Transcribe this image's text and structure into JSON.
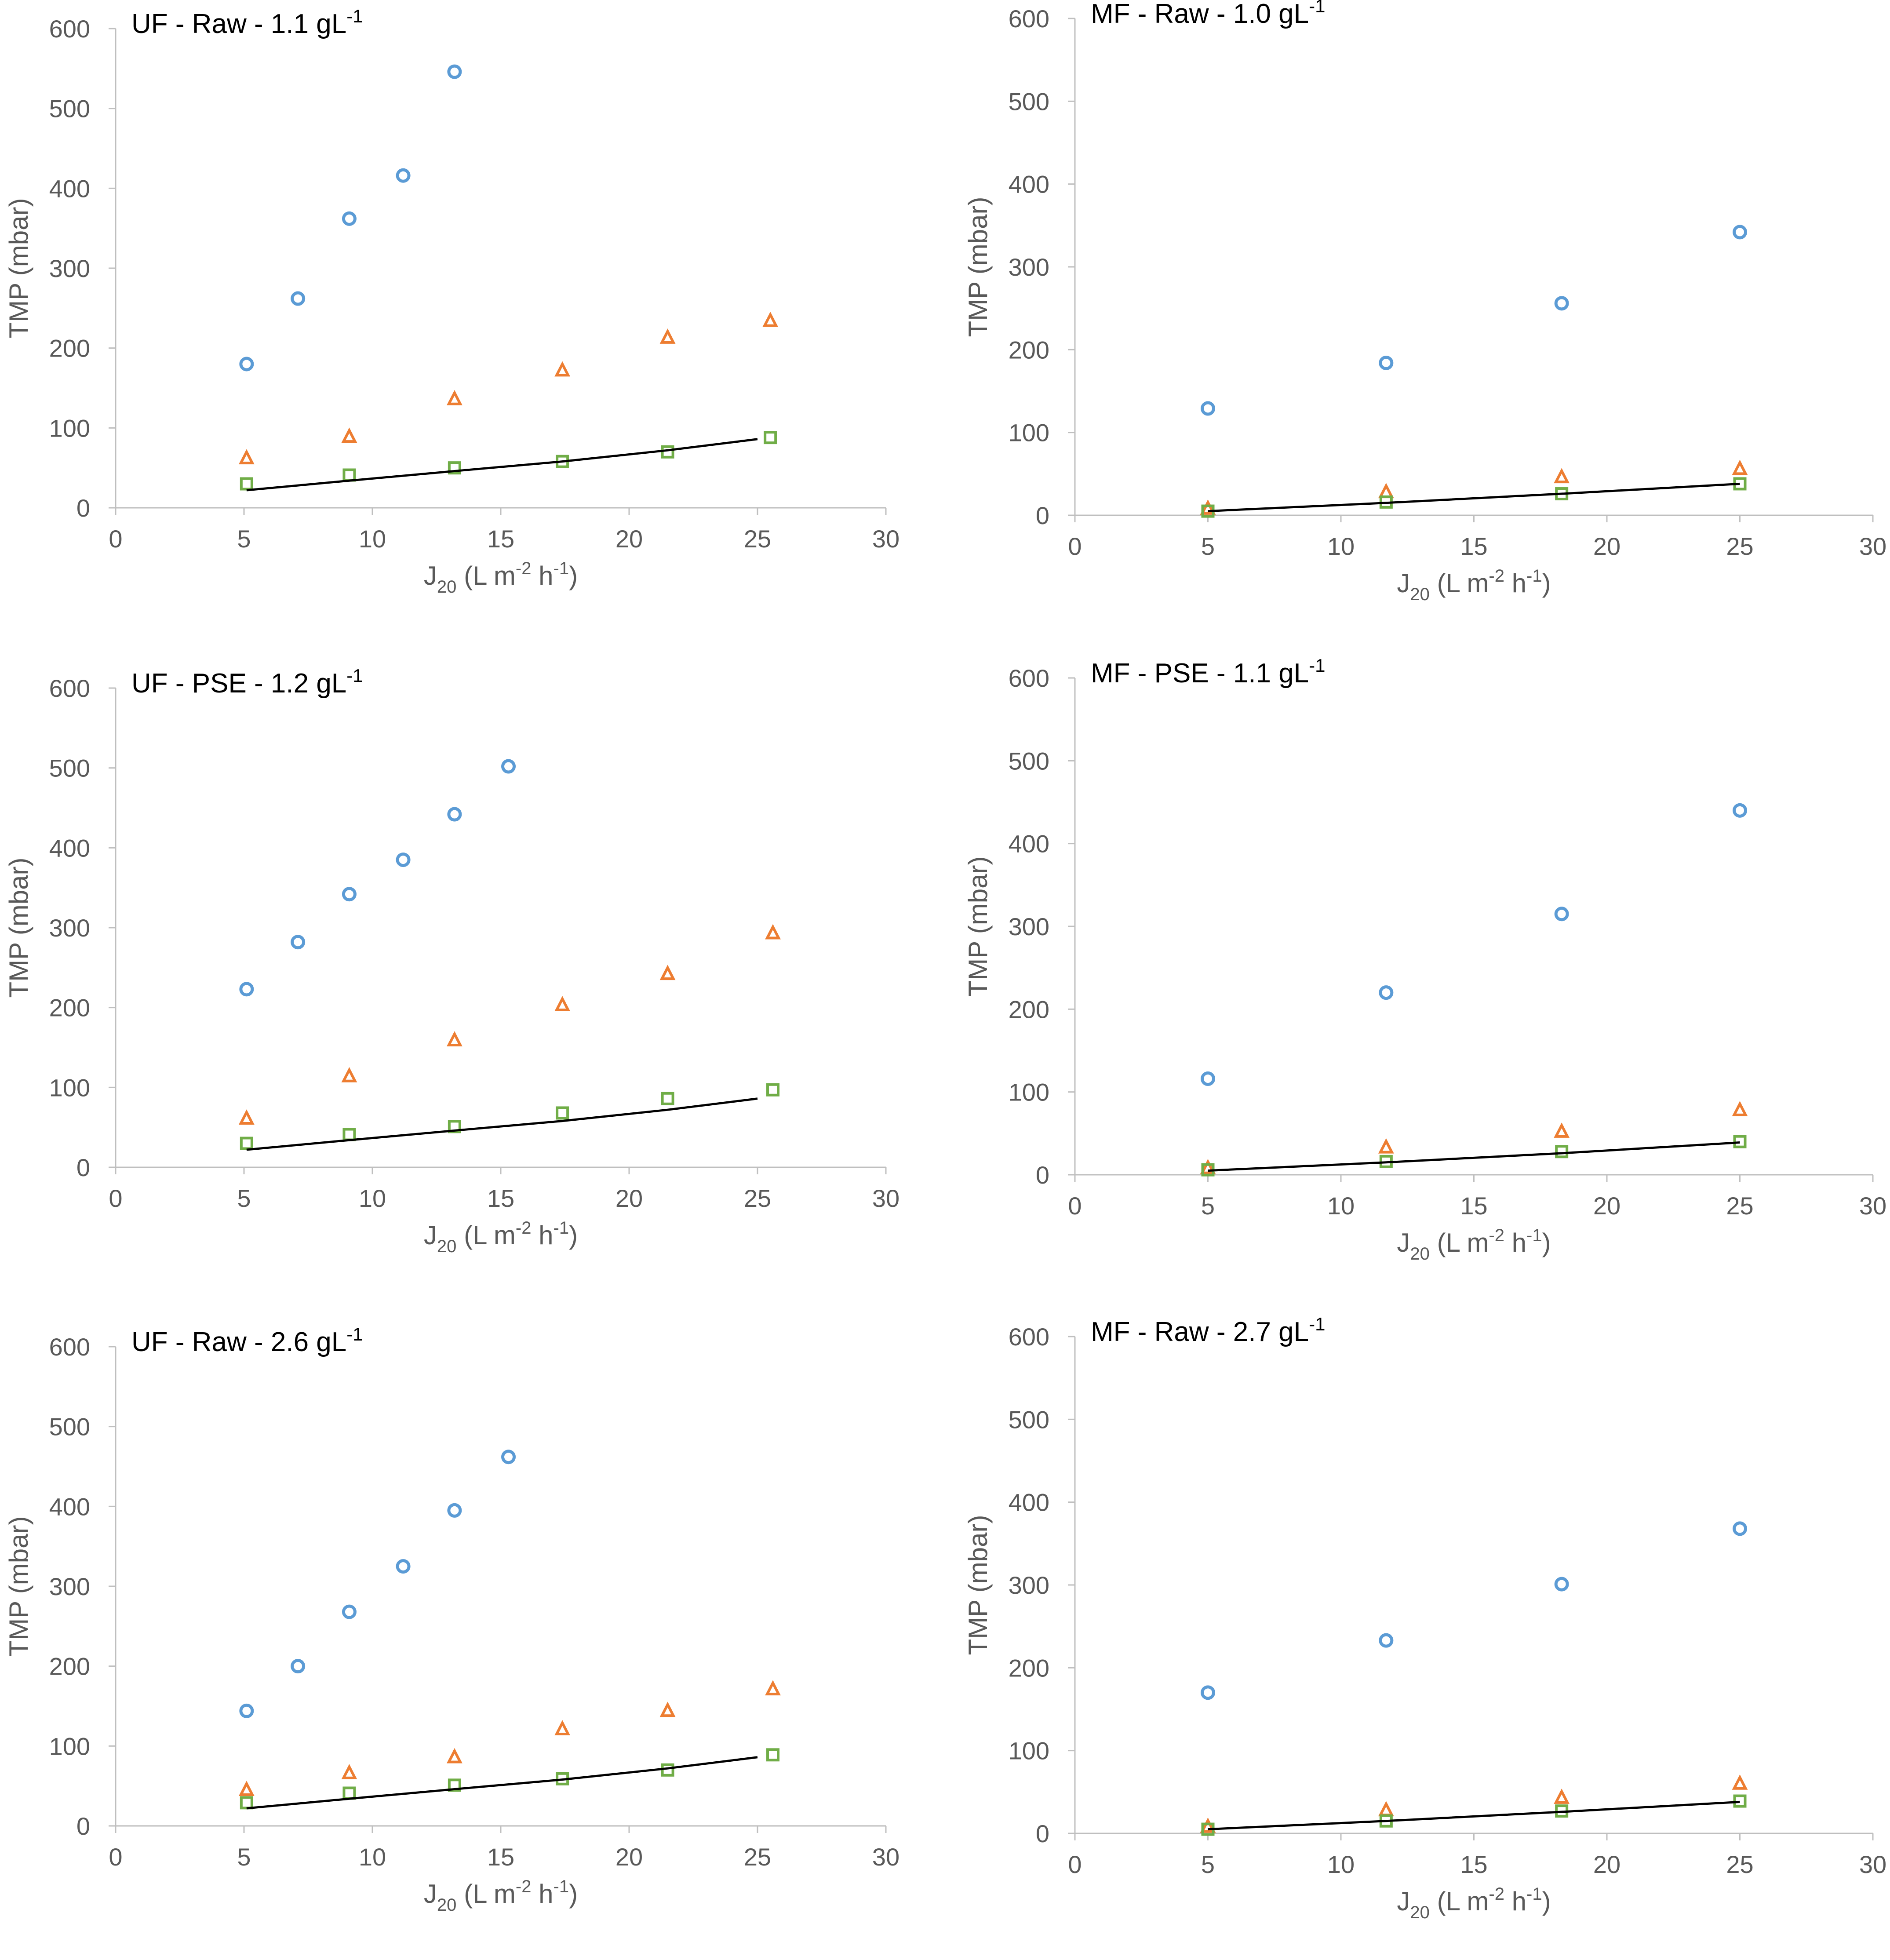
{
  "colors": {
    "circle": "#5b9bd5",
    "triangle": "#ed7d31",
    "square": "#70ad47",
    "line": "#000000"
  },
  "chart_data": [
    {
      "type": "scatter",
      "title": "UF - Raw - 1.1 gL",
      "title_superscript": "-1",
      "xlabel": "J20 (L m-2 h-1)",
      "xlabel_parts": [
        "J",
        "20",
        " (L m",
        "-2",
        " h",
        "-1",
        ")"
      ],
      "ylabel": "TMP (mbar)",
      "xlim": [
        0,
        30
      ],
      "ylim": [
        0,
        600
      ],
      "xticks": [
        0,
        5,
        10,
        15,
        20,
        25,
        30
      ],
      "yticks": [
        0,
        100,
        200,
        300,
        400,
        500,
        600
      ],
      "series": [
        {
          "name": "circle",
          "marker": "circle",
          "x": [
            5.1,
            7.1,
            9.1,
            11.2,
            13.2
          ],
          "y": [
            180,
            262,
            362,
            416,
            546
          ]
        },
        {
          "name": "triangle",
          "marker": "triangle",
          "x": [
            5.1,
            9.1,
            13.2,
            17.4,
            21.5,
            25.5
          ],
          "y": [
            62,
            89,
            136,
            172,
            213,
            234
          ]
        },
        {
          "name": "square",
          "marker": "square",
          "x": [
            5.1,
            9.1,
            13.2,
            17.4,
            21.5,
            25.5
          ],
          "y": [
            30,
            41,
            50,
            58,
            70,
            88
          ]
        },
        {
          "name": "line",
          "marker": "line",
          "x": [
            5.1,
            9.1,
            13.2,
            17.4,
            21.5,
            25.0
          ],
          "y": [
            22,
            34,
            46,
            58,
            72,
            86
          ]
        }
      ]
    },
    {
      "type": "scatter",
      "title": "MF - Raw - 1.0 gL",
      "title_superscript": "-1",
      "xlabel": "J20 (L m-2 h-1)",
      "xlabel_parts": [
        "J",
        "20",
        " (L m",
        "-2",
        " h",
        "-1",
        ")"
      ],
      "ylabel": "TMP (mbar)",
      "xlim": [
        0,
        30
      ],
      "ylim": [
        0,
        600
      ],
      "xticks": [
        0,
        5,
        10,
        15,
        20,
        25,
        30
      ],
      "yticks": [
        0,
        100,
        200,
        300,
        400,
        500,
        600
      ],
      "series": [
        {
          "name": "circle",
          "marker": "circle",
          "x": [
            5.0,
            11.7,
            18.3,
            25.0
          ],
          "y": [
            129,
            184,
            256,
            342
          ]
        },
        {
          "name": "triangle",
          "marker": "triangle",
          "x": [
            5.0,
            11.7,
            18.3,
            25.0
          ],
          "y": [
            8,
            28,
            46,
            56
          ]
        },
        {
          "name": "square",
          "marker": "square",
          "x": [
            5.0,
            11.7,
            18.3,
            25.0
          ],
          "y": [
            5,
            16,
            26,
            38
          ]
        },
        {
          "name": "line",
          "marker": "line",
          "x": [
            5.0,
            11.7,
            18.3,
            25.0
          ],
          "y": [
            5,
            15,
            26,
            38
          ]
        }
      ]
    },
    {
      "type": "scatter",
      "title": "UF - PSE - 1.2 gL",
      "title_superscript": "-1",
      "xlabel": "J20 (L m-2 h-1)",
      "xlabel_parts": [
        "J",
        "20",
        " (L m",
        "-2",
        " h",
        "-1",
        ")"
      ],
      "ylabel": "TMP (mbar)",
      "xlim": [
        0,
        30
      ],
      "ylim": [
        0,
        600
      ],
      "xticks": [
        0,
        5,
        10,
        15,
        20,
        25,
        30
      ],
      "yticks": [
        0,
        100,
        200,
        300,
        400,
        500,
        600
      ],
      "series": [
        {
          "name": "circle",
          "marker": "circle",
          "x": [
            5.1,
            7.1,
            9.1,
            11.2,
            13.2,
            15.3
          ],
          "y": [
            223,
            282,
            342,
            385,
            442,
            502
          ]
        },
        {
          "name": "triangle",
          "marker": "triangle",
          "x": [
            5.1,
            9.1,
            13.2,
            17.4,
            21.5,
            25.6
          ],
          "y": [
            61,
            114,
            159,
            203,
            242,
            293
          ]
        },
        {
          "name": "square",
          "marker": "square",
          "x": [
            5.1,
            9.1,
            13.2,
            17.4,
            21.5,
            25.6
          ],
          "y": [
            30,
            41,
            51,
            68,
            86,
            97
          ]
        },
        {
          "name": "line",
          "marker": "line",
          "x": [
            5.1,
            9.1,
            13.2,
            17.4,
            21.5,
            25.0
          ],
          "y": [
            22,
            34,
            46,
            58,
            72,
            86
          ]
        }
      ]
    },
    {
      "type": "scatter",
      "title": "MF - PSE - 1.1 gL",
      "title_superscript": "-1",
      "xlabel": "J20 (L m-2 h-1)",
      "xlabel_parts": [
        "J",
        "20",
        " (L m",
        "-2",
        " h",
        "-1",
        ")"
      ],
      "ylabel": "TMP (mbar)",
      "xlim": [
        0,
        30
      ],
      "ylim": [
        0,
        600
      ],
      "xticks": [
        0,
        5,
        10,
        15,
        20,
        25,
        30
      ],
      "yticks": [
        0,
        100,
        200,
        300,
        400,
        500,
        600
      ],
      "series": [
        {
          "name": "circle",
          "marker": "circle",
          "x": [
            5.0,
            11.7,
            18.3,
            25.0
          ],
          "y": [
            116,
            220,
            315,
            440
          ]
        },
        {
          "name": "triangle",
          "marker": "triangle",
          "x": [
            5.0,
            11.7,
            18.3,
            25.0
          ],
          "y": [
            8,
            33,
            52,
            78
          ]
        },
        {
          "name": "square",
          "marker": "square",
          "x": [
            5.0,
            11.7,
            18.3,
            25.0
          ],
          "y": [
            6,
            16,
            28,
            40
          ]
        },
        {
          "name": "line",
          "marker": "line",
          "x": [
            5.0,
            11.7,
            18.3,
            25.0
          ],
          "y": [
            5,
            15,
            26,
            39
          ]
        }
      ]
    },
    {
      "type": "scatter",
      "title": "UF - Raw - 2.6 gL",
      "title_superscript": "-1",
      "xlabel": "J20 (L m-2 h-1)",
      "xlabel_parts": [
        "J",
        "20",
        " (L m",
        "-2",
        " h",
        "-1",
        ")"
      ],
      "ylabel": "TMP (mbar)",
      "xlim": [
        0,
        30
      ],
      "ylim": [
        0,
        600
      ],
      "xticks": [
        0,
        5,
        10,
        15,
        20,
        25,
        30
      ],
      "yticks": [
        0,
        100,
        200,
        300,
        400,
        500,
        600
      ],
      "series": [
        {
          "name": "circle",
          "marker": "circle",
          "x": [
            5.1,
            7.1,
            9.1,
            11.2,
            13.2,
            15.3
          ],
          "y": [
            144,
            200,
            268,
            325,
            395,
            462
          ]
        },
        {
          "name": "triangle",
          "marker": "triangle",
          "x": [
            5.1,
            9.1,
            13.2,
            17.4,
            21.5,
            25.6
          ],
          "y": [
            45,
            66,
            86,
            121,
            144,
            171
          ]
        },
        {
          "name": "square",
          "marker": "square",
          "x": [
            5.1,
            9.1,
            13.2,
            17.4,
            21.5,
            25.6
          ],
          "y": [
            29,
            41,
            51,
            59,
            70,
            89
          ]
        },
        {
          "name": "line",
          "marker": "line",
          "x": [
            5.1,
            9.1,
            13.2,
            17.4,
            21.5,
            25.0
          ],
          "y": [
            22,
            34,
            46,
            58,
            72,
            86
          ]
        }
      ]
    },
    {
      "type": "scatter",
      "title": "MF - Raw - 2.7 gL",
      "title_superscript": "-1",
      "xlabel": "J20 (L m-2 h-1)",
      "xlabel_parts": [
        "J",
        "20",
        " (L m",
        "-2",
        " h",
        "-1",
        ")"
      ],
      "ylabel": "TMP (mbar)",
      "xlim": [
        0,
        30
      ],
      "ylim": [
        0,
        600
      ],
      "xticks": [
        0,
        5,
        10,
        15,
        20,
        25,
        30
      ],
      "yticks": [
        0,
        100,
        200,
        300,
        400,
        500,
        600
      ],
      "series": [
        {
          "name": "circle",
          "marker": "circle",
          "x": [
            5.0,
            11.7,
            18.3,
            25.0
          ],
          "y": [
            170,
            233,
            301,
            368
          ]
        },
        {
          "name": "triangle",
          "marker": "triangle",
          "x": [
            5.0,
            11.7,
            18.3,
            25.0
          ],
          "y": [
            8,
            28,
            43,
            60
          ]
        },
        {
          "name": "square",
          "marker": "square",
          "x": [
            5.0,
            11.7,
            18.3,
            25.0
          ],
          "y": [
            5,
            15,
            27,
            39
          ]
        },
        {
          "name": "line",
          "marker": "line",
          "x": [
            5.0,
            11.7,
            18.3,
            25.0
          ],
          "y": [
            5,
            15,
            26,
            38
          ]
        }
      ]
    }
  ]
}
